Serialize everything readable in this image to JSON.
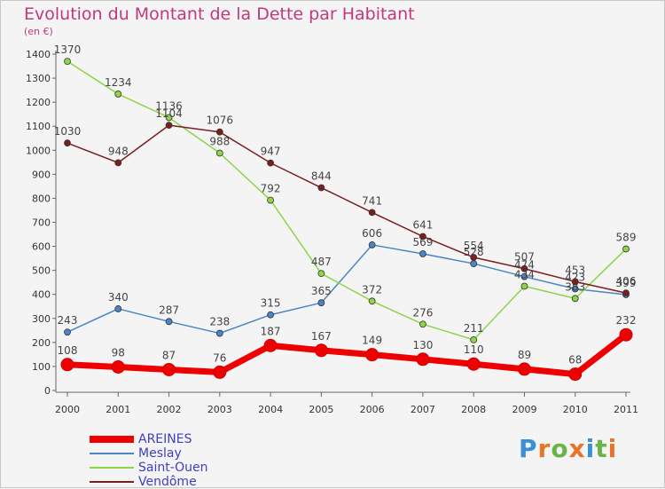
{
  "chart_data": {
    "type": "line",
    "title": "Evolution du Montant de la Dette par Habitant",
    "unit_label": "(en €)",
    "x": [
      "2000",
      "2001",
      "2002",
      "2003",
      "2004",
      "2005",
      "2006",
      "2007",
      "2008",
      "2009",
      "2010",
      "2011"
    ],
    "ylim": [
      0,
      1400
    ],
    "yticks": [
      0,
      100,
      200,
      300,
      400,
      500,
      600,
      700,
      800,
      900,
      1000,
      1100,
      1200,
      1300,
      1400
    ],
    "grid": false,
    "legend_position": "bottom-left",
    "series": [
      {
        "name": "Meslay",
        "color": "#4a86c5",
        "values": [
          243,
          340,
          287,
          238,
          315,
          365,
          606,
          569,
          528,
          474,
          423,
          399
        ]
      },
      {
        "name": "Saint-Ouen",
        "color": "#8ed44a",
        "values": [
          1370,
          1234,
          1136,
          988,
          792,
          487,
          372,
          276,
          211,
          434,
          383,
          589
        ]
      },
      {
        "name": "Vendôme",
        "color": "#7a1f1f",
        "values": [
          1030,
          948,
          1104,
          1076,
          947,
          844,
          741,
          641,
          554,
          507,
          453,
          406
        ]
      },
      {
        "name": "AREINES",
        "color": "#ee0000",
        "values": [
          108,
          98,
          87,
          76,
          187,
          167,
          149,
          130,
          110,
          89,
          68,
          232
        ]
      }
    ],
    "legend_order": [
      "AREINES",
      "Meslay",
      "Saint-Ouen",
      "Vendôme"
    ]
  },
  "logo": {
    "letters": [
      "P",
      "r",
      "o",
      "x",
      "i",
      "t",
      "i"
    ],
    "colors": [
      "#3b8fd4",
      "#e8742a",
      "#6ab24a",
      "#e8742a",
      "#3b8fd4",
      "#6ab24a",
      "#e8742a"
    ]
  }
}
